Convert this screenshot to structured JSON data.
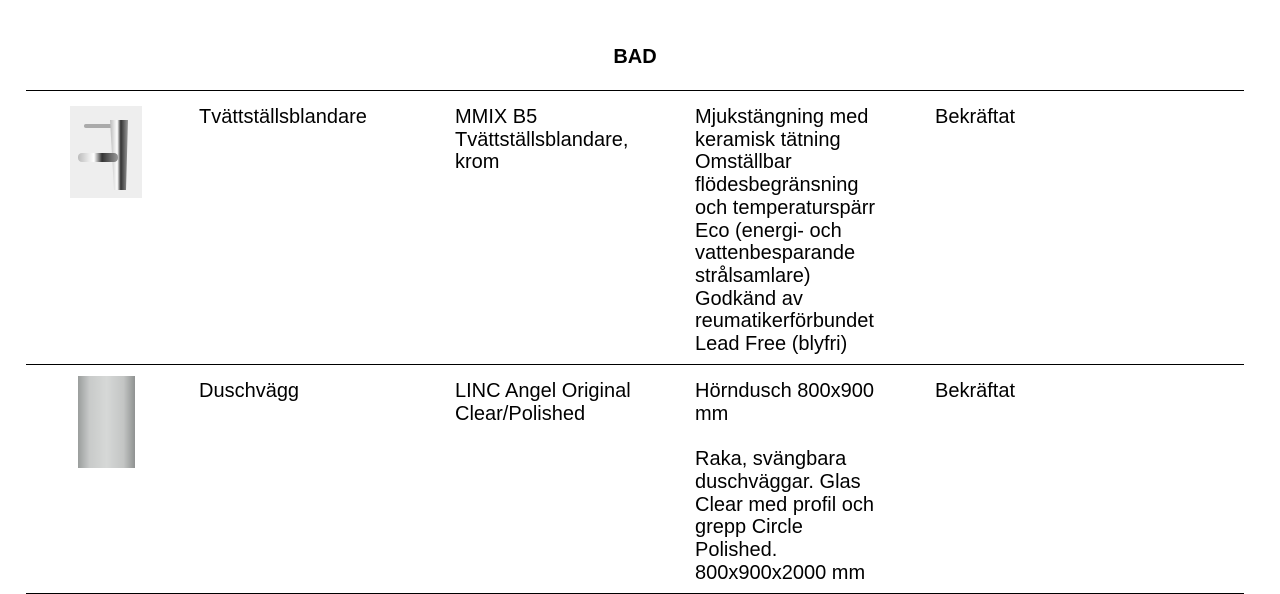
{
  "title": "BAD",
  "rows": [
    {
      "image": "faucet-image",
      "category": "Tvättställsblandare",
      "product": "MMIX B5\nTvättställsblandare,\nkrom",
      "description": "Mjukstängning med\nkeramisk tätning\nOmställbar\nflödesbegränsning\noch temperaturspärr\nEco (energi- och\nvattenbesparande\nstrålsamlare)\nGodkänd av\nreumatikerförbundet\nLead Free (blyfri)",
      "status": "Bekräftat"
    },
    {
      "image": "shower-wall-image",
      "category": "Duschvägg",
      "product": "LINC Angel Original\nClear/Polished",
      "description": "Hörndusch 800x900\nmm\n\nRaka, svängbara\nduschväggar. Glas\nClear med profil och\ngrepp Circle\nPolished.\n800x900x2000 mm",
      "status": "Bekräftat"
    }
  ]
}
